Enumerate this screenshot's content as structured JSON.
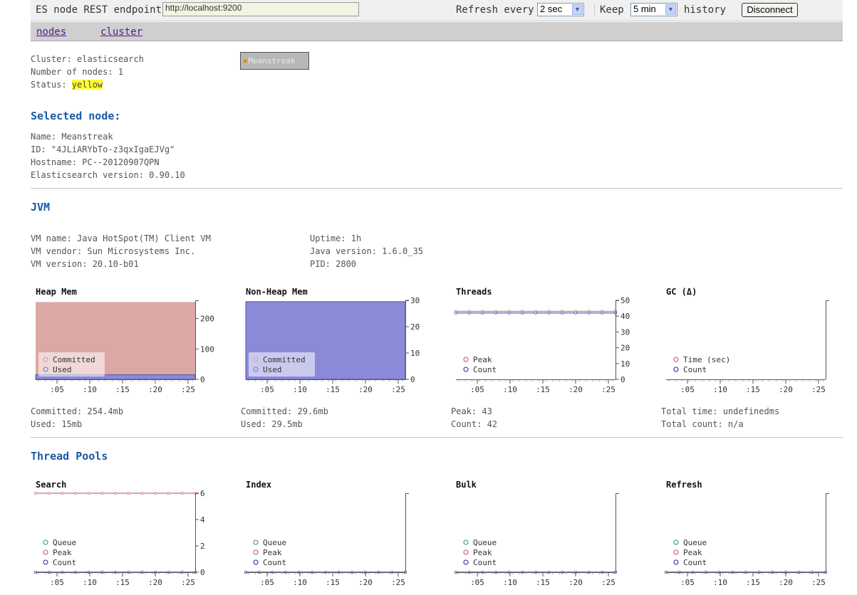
{
  "topbar": {
    "endpoint_label": "ES node REST endpoint",
    "endpoint_value": "http://localhost:9200",
    "refresh_label": "Refresh every",
    "refresh_value": "2 sec",
    "keep_label": "Keep",
    "keep_value": "5 min",
    "history_label": "history",
    "disconnect_label": "Disconnect"
  },
  "nav": {
    "nodes": "nodes",
    "cluster": "cluster"
  },
  "cluster": {
    "name": "Cluster: elasticsearch",
    "nodes": "Number of nodes: 1",
    "status_label": "Status: ",
    "status_value": "yellow",
    "node_button": "Meanstreak"
  },
  "selected_node": {
    "title": "Selected node:",
    "name": "Name: Meanstreak",
    "id": "ID: \"4JLiARYbTo-z3qxIgaEJVg\"",
    "hostname": "Hostname: PC--20120907QPN",
    "version": "Elasticsearch version: 0.90.10"
  },
  "jvm": {
    "title": "JVM",
    "vm_name": "VM name: Java HotSpot(TM) Client VM",
    "vm_vendor": "VM vendor: Sun Microsystems Inc.",
    "vm_version": "VM version: 20.10-b01",
    "uptime": "Uptime: 1h",
    "java_version": "Java version: 1.6.0_35",
    "pid": "PID: 2800"
  },
  "jvm_stats": {
    "heap": {
      "committed": "Committed: 254.4mb",
      "used": "Used: 15mb"
    },
    "nonheap": {
      "committed": "Committed: 29.6mb",
      "used": "Used: 29.5mb"
    },
    "threads": {
      "peak": "Peak: 43",
      "count": "Count: 42"
    },
    "gc": {
      "total_time": "Total time: undefinedms",
      "total_count": "Total count: n/a"
    }
  },
  "thread_pools": {
    "title": "Thread Pools"
  },
  "colors": {
    "committed_fill": "#dba8a5",
    "used_fill": "#8a8ad8",
    "peak": "#c87878",
    "count": "#5050b0",
    "queue": "#50b090"
  },
  "chart_data": [
    {
      "title": "Heap Mem",
      "type": "area",
      "categories": [
        ":05",
        ":10",
        ":15",
        ":20",
        ":25"
      ],
      "yticks": [
        "0",
        "100",
        "200"
      ],
      "ylim": [
        0,
        260
      ],
      "legend": [
        "Committed",
        "Used"
      ],
      "series": [
        {
          "name": "Committed",
          "values": [
            254.4,
            254.4,
            254.4,
            254.4,
            254.4
          ]
        },
        {
          "name": "Used",
          "values": [
            15,
            15,
            15,
            15,
            15
          ]
        }
      ]
    },
    {
      "title": "Non-Heap Mem",
      "type": "area",
      "categories": [
        ":05",
        ":10",
        ":15",
        ":20",
        ":25"
      ],
      "yticks": [
        "0",
        "10",
        "20",
        "30"
      ],
      "ylim": [
        0,
        30
      ],
      "legend": [
        "Committed",
        "Used"
      ],
      "series": [
        {
          "name": "Committed",
          "values": [
            29.6,
            29.6,
            29.6,
            29.6,
            29.6
          ]
        },
        {
          "name": "Used",
          "values": [
            29.5,
            29.5,
            29.5,
            29.5,
            29.5
          ]
        }
      ]
    },
    {
      "title": "Threads",
      "type": "line",
      "categories": [
        ":05",
        ":10",
        ":15",
        ":20",
        ":25"
      ],
      "yticks": [
        "0",
        "10",
        "20",
        "30",
        "40",
        "50"
      ],
      "ylim": [
        0,
        50
      ],
      "legend": [
        "Peak",
        "Count"
      ],
      "series": [
        {
          "name": "Peak",
          "values": [
            43,
            43,
            43,
            43,
            43
          ]
        },
        {
          "name": "Count",
          "values": [
            42,
            42,
            42,
            42,
            42
          ]
        }
      ]
    },
    {
      "title": "GC (Δ)",
      "type": "line",
      "categories": [
        ":05",
        ":10",
        ":15",
        ":20",
        ":25"
      ],
      "yticks": [],
      "ylim": [
        0,
        1
      ],
      "legend": [
        "Time (sec)",
        "Count"
      ],
      "series": []
    },
    {
      "title": "Search",
      "type": "line",
      "categories": [
        ":05",
        ":10",
        ":15",
        ":20",
        ":25"
      ],
      "yticks": [
        "0",
        "2",
        "4",
        "6"
      ],
      "ylim": [
        0,
        6
      ],
      "legend": [
        "Queue",
        "Peak",
        "Count"
      ],
      "series": [
        {
          "name": "Queue",
          "values": [
            0,
            0,
            0,
            0,
            0
          ]
        },
        {
          "name": "Peak",
          "values": [
            6,
            6,
            6,
            6,
            6
          ]
        },
        {
          "name": "Count",
          "values": [
            0,
            0,
            0,
            0,
            0
          ]
        }
      ]
    },
    {
      "title": "Index",
      "type": "line",
      "categories": [
        ":05",
        ":10",
        ":15",
        ":20",
        ":25"
      ],
      "yticks": [],
      "ylim": [
        0,
        1
      ],
      "legend": [
        "Queue",
        "Peak",
        "Count"
      ],
      "series": [
        {
          "name": "Queue",
          "values": [
            0,
            0,
            0,
            0,
            0
          ]
        },
        {
          "name": "Peak",
          "values": [
            0,
            0,
            0,
            0,
            0
          ]
        },
        {
          "name": "Count",
          "values": [
            0,
            0,
            0,
            0,
            0
          ]
        }
      ]
    },
    {
      "title": "Bulk",
      "type": "line",
      "categories": [
        ":05",
        ":10",
        ":15",
        ":20",
        ":25"
      ],
      "yticks": [],
      "ylim": [
        0,
        1
      ],
      "legend": [
        "Queue",
        "Peak",
        "Count"
      ],
      "series": [
        {
          "name": "Queue",
          "values": [
            0,
            0,
            0,
            0,
            0
          ]
        },
        {
          "name": "Peak",
          "values": [
            0,
            0,
            0,
            0,
            0
          ]
        },
        {
          "name": "Count",
          "values": [
            0,
            0,
            0,
            0,
            0
          ]
        }
      ]
    },
    {
      "title": "Refresh",
      "type": "line",
      "categories": [
        ":05",
        ":10",
        ":15",
        ":20",
        ":25"
      ],
      "yticks": [],
      "ylim": [
        0,
        1
      ],
      "legend": [
        "Queue",
        "Peak",
        "Count"
      ],
      "series": [
        {
          "name": "Queue",
          "values": [
            0,
            0,
            0,
            0,
            0
          ]
        },
        {
          "name": "Peak",
          "values": [
            0,
            0,
            0,
            0,
            0
          ]
        },
        {
          "name": "Count",
          "values": [
            0,
            0,
            0,
            0,
            0
          ]
        }
      ]
    }
  ]
}
